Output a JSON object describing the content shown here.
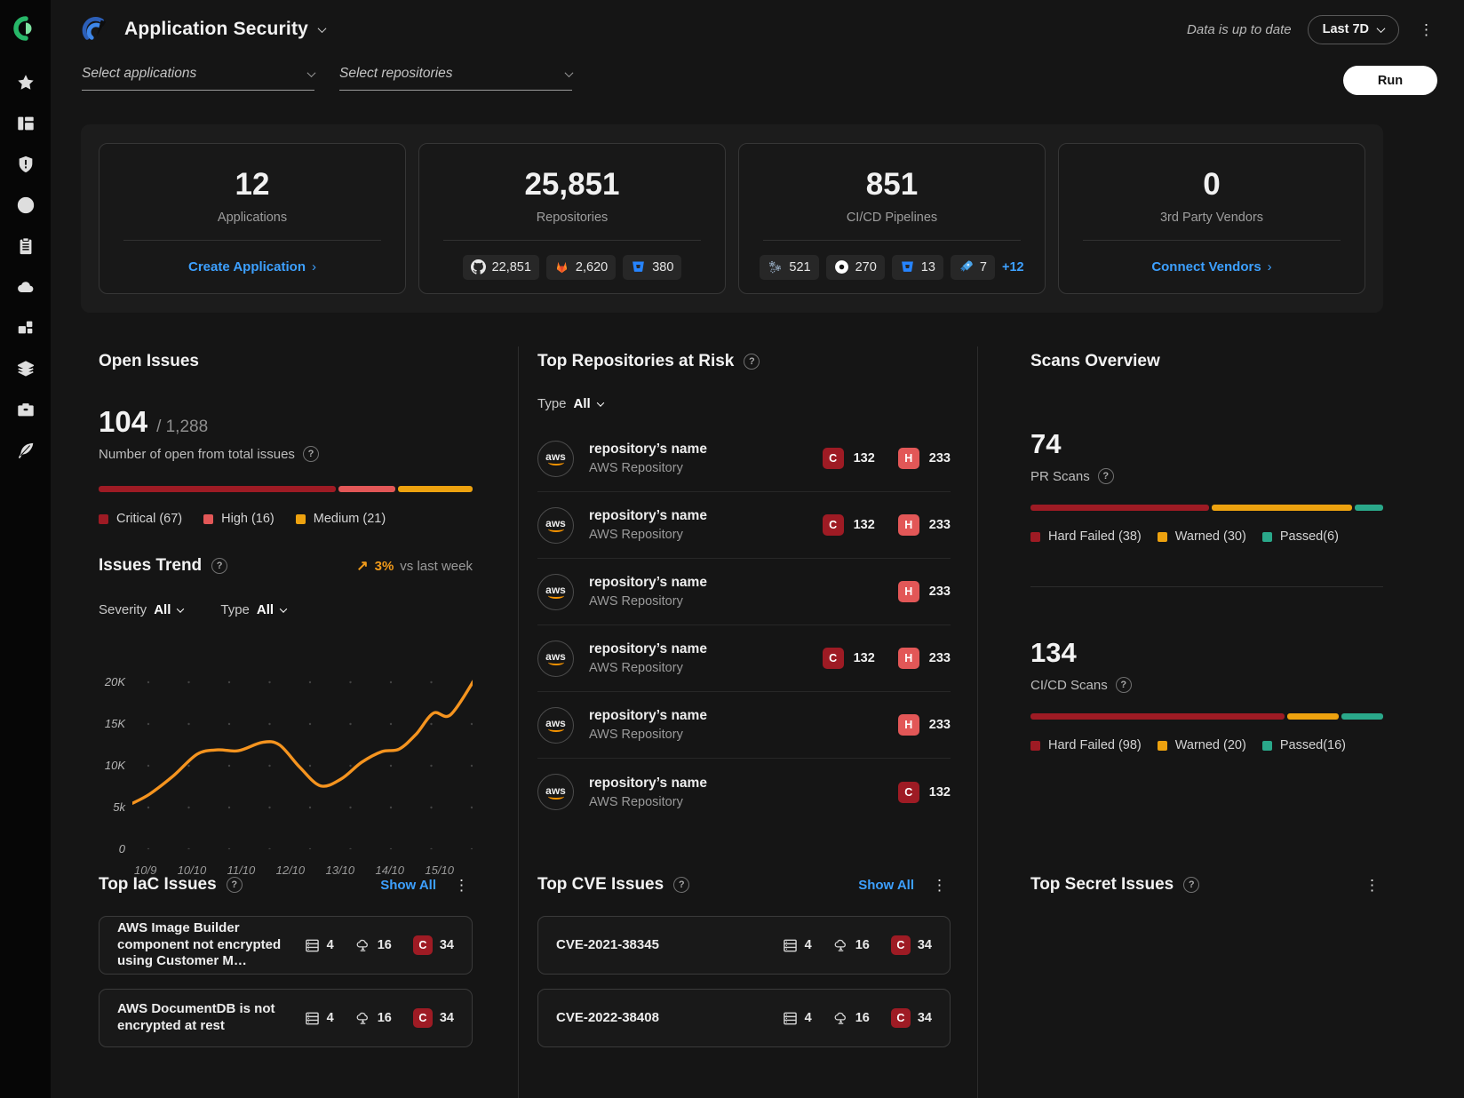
{
  "sidebar": {
    "icons": [
      "logo",
      "star",
      "dashboard",
      "shield-alert",
      "target",
      "clipboard",
      "cloud",
      "widgets",
      "layers",
      "toolbox",
      "quill"
    ]
  },
  "header": {
    "app_title": "Application Security",
    "status_text": "Data is up to date",
    "time_range": "Last 7D"
  },
  "filters": {
    "applications_placeholder": "Select applications",
    "repositories_placeholder": "Select repositories",
    "run_label": "Run"
  },
  "summary": {
    "applications": {
      "value": "12",
      "label": "Applications",
      "link_label": "Create Application"
    },
    "repositories": {
      "value": "25,851",
      "label": "Repositories",
      "chips": [
        {
          "icon": "github",
          "count": "22,851"
        },
        {
          "icon": "gitlab",
          "count": "2,620"
        },
        {
          "icon": "bitbucket",
          "count": "380"
        }
      ]
    },
    "pipelines": {
      "value": "851",
      "label": "CI/CD Pipelines",
      "chips": [
        {
          "icon": "pipeline-gears",
          "count": "521"
        },
        {
          "icon": "circleci",
          "count": "270"
        },
        {
          "icon": "bitbucket",
          "count": "13"
        },
        {
          "icon": "azure-pipelines",
          "count": "7"
        }
      ],
      "more_label": "+12"
    },
    "vendors": {
      "value": "0",
      "label": "3rd Party Vendors",
      "link_label": "Connect Vendors"
    }
  },
  "open_issues": {
    "title": "Open Issues",
    "open_count": "104",
    "total_suffix": "/ 1,288",
    "subtitle": "Number of open from total issues",
    "segments": [
      {
        "label": "Critical (67)",
        "count": 67,
        "color": "#9e1b24"
      },
      {
        "label": "High (16)",
        "count": 16,
        "color": "#e25757"
      },
      {
        "label": "Medium (21)",
        "count": 21,
        "color": "#eda20f"
      }
    ]
  },
  "issues_trend": {
    "title": "Issues Trend",
    "delta": "3%",
    "delta_note": "vs last week",
    "severity_label": "Severity",
    "severity_value": "All",
    "type_label": "Type",
    "type_value": "All"
  },
  "chart_data": {
    "type": "line",
    "title": "Issues Trend",
    "x_labels": [
      "10/9",
      "10/10",
      "11/10",
      "12/10",
      "13/10",
      "14/10",
      "15/10"
    ],
    "y_ticks_top_down": [
      "20K",
      "15K",
      "10K",
      "5k",
      "0"
    ],
    "ylim": [
      0,
      25000
    ],
    "grid": "dotted",
    "legend_position": "none",
    "series": [
      {
        "name": "Issues",
        "color": "#f5941f",
        "points": [
          [
            0,
            5500
          ],
          [
            0.05,
            6600
          ],
          [
            0.12,
            8800
          ],
          [
            0.19,
            11400
          ],
          [
            0.25,
            11900
          ],
          [
            0.31,
            11800
          ],
          [
            0.38,
            12800
          ],
          [
            0.43,
            12500
          ],
          [
            0.49,
            9800
          ],
          [
            0.55,
            7600
          ],
          [
            0.61,
            8400
          ],
          [
            0.67,
            10400
          ],
          [
            0.73,
            11700
          ],
          [
            0.78,
            12000
          ],
          [
            0.83,
            13800
          ],
          [
            0.88,
            16300
          ],
          [
            0.93,
            16100
          ],
          [
            1,
            20300
          ]
        ]
      }
    ]
  },
  "top_repositories": {
    "title": "Top Repositories at Risk",
    "type_label": "Type",
    "type_value": "All",
    "rows": [
      {
        "name": "repository’s name",
        "subtitle": "AWS Repository",
        "critical": "132",
        "high": "233"
      },
      {
        "name": "repository’s name",
        "subtitle": "AWS Repository",
        "critical": "132",
        "high": "233"
      },
      {
        "name": "repository’s name",
        "subtitle": "AWS Repository",
        "critical": null,
        "high": "233"
      },
      {
        "name": "repository’s name",
        "subtitle": "AWS Repository",
        "critical": "132",
        "high": "233"
      },
      {
        "name": "repository’s name",
        "subtitle": "AWS Repository",
        "critical": null,
        "high": "233"
      },
      {
        "name": "repository’s name",
        "subtitle": "AWS Repository",
        "critical": "132",
        "high": null
      }
    ]
  },
  "scans_overview": {
    "title": "Scans Overview",
    "sections": [
      {
        "value": "74",
        "label": "PR Scans",
        "segments": [
          {
            "label": "Hard Failed (38)",
            "count": 38,
            "color": "#9e1b24"
          },
          {
            "label": "Warned (30)",
            "count": 30,
            "color": "#eda20f"
          },
          {
            "label": "Passed(6)",
            "count": 6,
            "color": "#2aa88a"
          }
        ]
      },
      {
        "value": "134",
        "label": "CI/CD Scans",
        "segments": [
          {
            "label": "Hard Failed (98)",
            "count": 98,
            "color": "#9e1b24"
          },
          {
            "label": "Warned (20)",
            "count": 20,
            "color": "#eda20f"
          },
          {
            "label": "Passed(16)",
            "count": 16,
            "color": "#2aa88a"
          }
        ]
      }
    ]
  },
  "top_iac": {
    "title": "Top IaC Issues",
    "show_all_label": "Show All",
    "cards": [
      {
        "title": "AWS Image Builder component not encrypted using Customer M…",
        "resources": "4",
        "clouds": "16",
        "critical": "34"
      },
      {
        "title": "AWS DocumentDB is not encrypted at rest",
        "resources": "4",
        "clouds": "16",
        "critical": "34"
      }
    ]
  },
  "top_cve": {
    "title": "Top CVE Issues",
    "show_all_label": "Show All",
    "cards": [
      {
        "title": "CVE-2021-38345",
        "resources": "4",
        "clouds": "16",
        "critical": "34"
      },
      {
        "title": "CVE-2022-38408",
        "resources": "4",
        "clouds": "16",
        "critical": "34"
      }
    ]
  },
  "top_secret": {
    "title": "Top Secret Issues"
  }
}
